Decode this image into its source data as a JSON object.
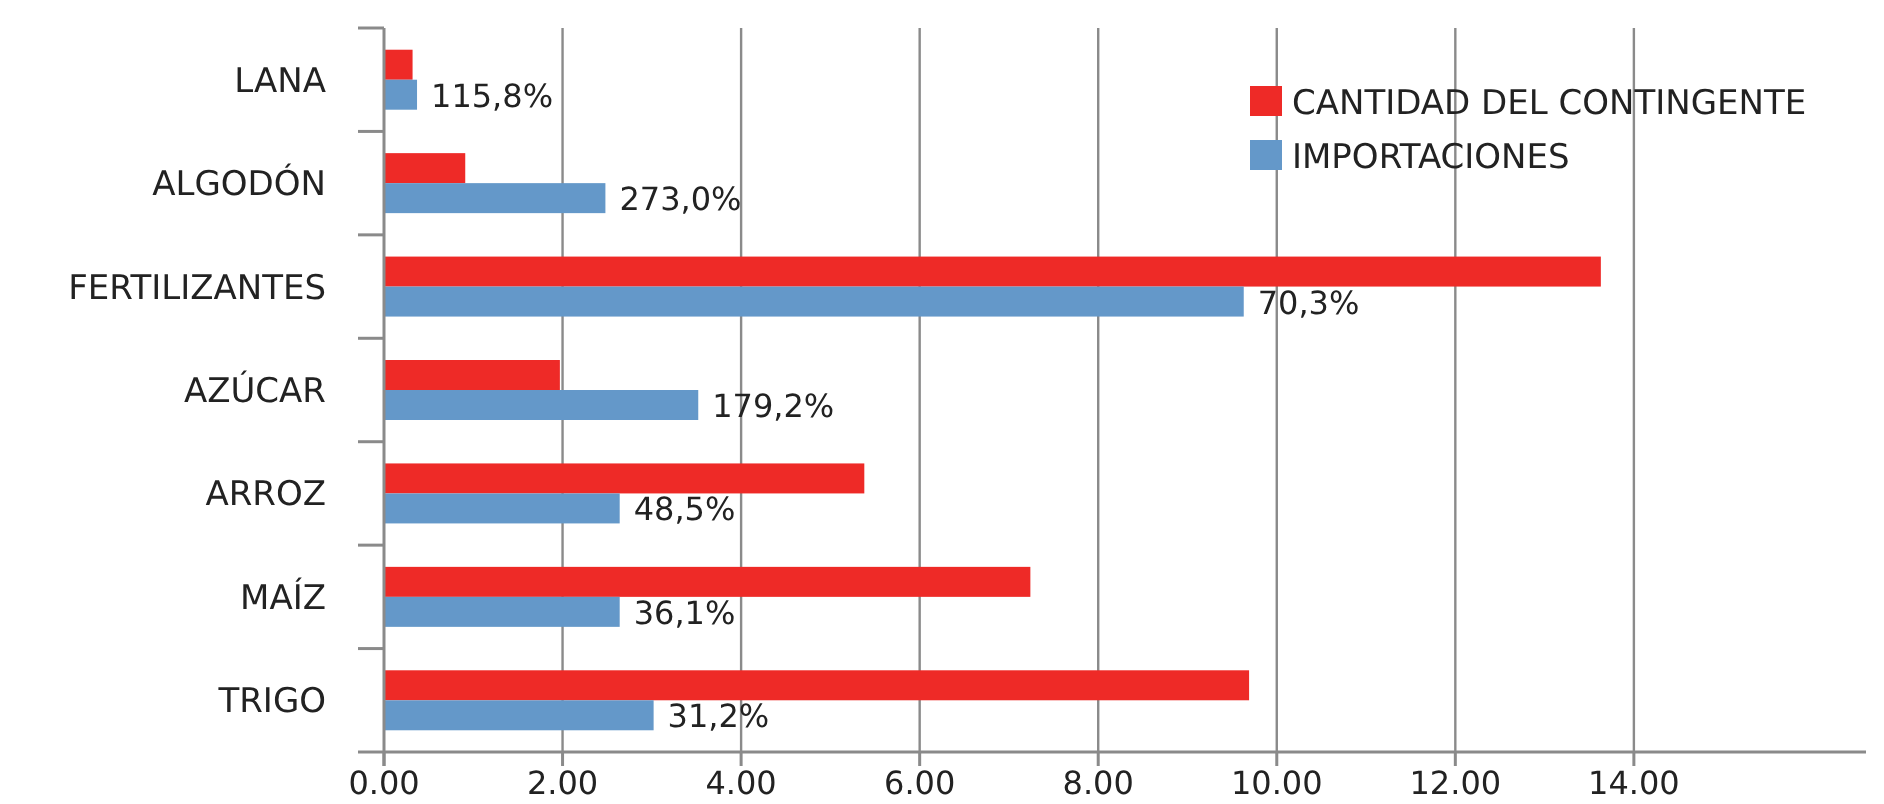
{
  "chart_data": {
    "type": "bar",
    "orientation": "horizontal",
    "categories": [
      "LANA",
      "ALGODÓN",
      "FERTILIZANTES",
      "AZÚCAR",
      "ARROZ",
      "MAÍZ",
      "TRIGO"
    ],
    "series": [
      {
        "name": "CANTIDAD DEL CONTINGENTE",
        "color": "#ee2a27",
        "values": [
          0.32,
          0.91,
          13.63,
          1.97,
          5.38,
          7.24,
          9.69
        ]
      },
      {
        "name": "IMPORTACIONES",
        "color": "#6498c9",
        "values": [
          0.37,
          2.48,
          9.63,
          3.52,
          2.64,
          2.64,
          3.02
        ]
      }
    ],
    "annotations": [
      {
        "text": "115,8%",
        "x": 0.37,
        "y": "LANA"
      },
      {
        "text": "273,0%",
        "x": 2.48,
        "y": "ALGODÓN"
      },
      {
        "text": "70,3%",
        "x": 9.63,
        "y": "FERTILIZANTES"
      },
      {
        "text": "179,2%",
        "x": 3.52,
        "y": "AZÚCAR"
      },
      {
        "text": "48,5%",
        "x": 2.64,
        "y": "ARROZ"
      },
      {
        "text": "36,1%",
        "x": 2.64,
        "y": "MAÍZ"
      },
      {
        "text": "31,2%",
        "x": 3.02,
        "y": "TRIGO"
      }
    ],
    "xlim": [
      0,
      16.6
    ],
    "xticks": [
      {
        "value": 0,
        "label": "0.00"
      },
      {
        "value": 2,
        "label": "2.00"
      },
      {
        "value": 4,
        "label": "4.00"
      },
      {
        "value": 6,
        "label": "6.00"
      },
      {
        "value": 8,
        "label": "8.00"
      },
      {
        "value": 10,
        "label": "10.00"
      },
      {
        "value": 12,
        "label": "12.00"
      },
      {
        "value": 14,
        "label": "14.00"
      }
    ],
    "grid": "x",
    "legend": "top right"
  }
}
